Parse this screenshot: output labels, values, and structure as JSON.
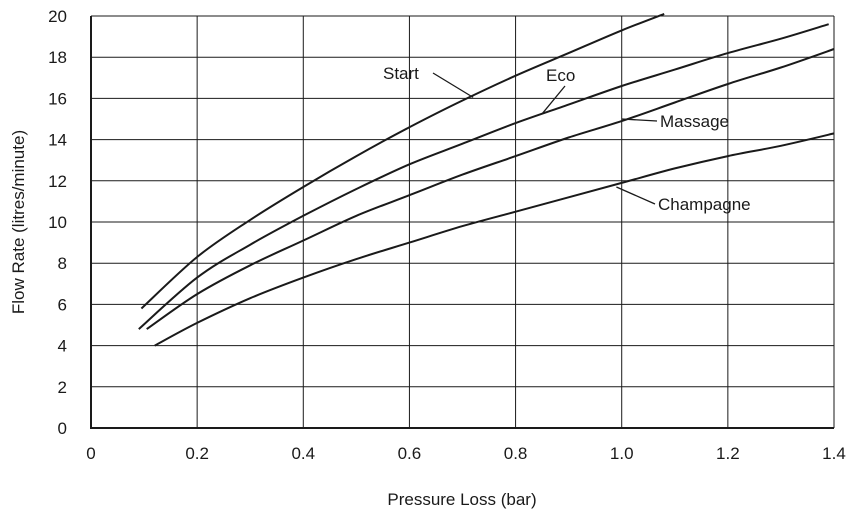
{
  "chart_data": {
    "type": "line",
    "xlabel": "Pressure Loss (bar)",
    "ylabel": "Flow Rate (litres/minute)",
    "xlim": [
      0,
      1.4
    ],
    "ylim": [
      0,
      20
    ],
    "x_ticks": [
      "0",
      "0.2",
      "0.4",
      "0.6",
      "0.8",
      "1.0",
      "1.2",
      "1.4"
    ],
    "y_ticks": [
      "0",
      "2",
      "4",
      "6",
      "8",
      "10",
      "12",
      "14",
      "16",
      "18",
      "20"
    ],
    "grid": true,
    "line_color": "#1a1a1a",
    "series": [
      {
        "name": "Start",
        "points": [
          [
            0.095,
            5.8
          ],
          [
            0.2,
            8.3
          ],
          [
            0.3,
            10.1
          ],
          [
            0.4,
            11.7
          ],
          [
            0.5,
            13.2
          ],
          [
            0.6,
            14.6
          ],
          [
            0.7,
            15.9
          ],
          [
            0.8,
            17.1
          ],
          [
            0.9,
            18.2
          ],
          [
            1.0,
            19.3
          ],
          [
            1.08,
            20.1
          ]
        ]
      },
      {
        "name": "Eco",
        "points": [
          [
            0.09,
            4.8
          ],
          [
            0.2,
            7.3
          ],
          [
            0.3,
            8.9
          ],
          [
            0.4,
            10.3
          ],
          [
            0.5,
            11.6
          ],
          [
            0.6,
            12.8
          ],
          [
            0.7,
            13.8
          ],
          [
            0.8,
            14.8
          ],
          [
            0.9,
            15.7
          ],
          [
            1.0,
            16.6
          ],
          [
            1.1,
            17.4
          ],
          [
            1.2,
            18.2
          ],
          [
            1.3,
            18.9
          ],
          [
            1.39,
            19.6
          ]
        ]
      },
      {
        "name": "Massage",
        "points": [
          [
            0.105,
            4.8
          ],
          [
            0.2,
            6.5
          ],
          [
            0.3,
            7.9
          ],
          [
            0.4,
            9.1
          ],
          [
            0.5,
            10.3
          ],
          [
            0.6,
            11.3
          ],
          [
            0.7,
            12.3
          ],
          [
            0.8,
            13.2
          ],
          [
            0.9,
            14.1
          ],
          [
            1.0,
            14.9
          ],
          [
            1.1,
            15.8
          ],
          [
            1.2,
            16.7
          ],
          [
            1.3,
            17.5
          ],
          [
            1.4,
            18.4
          ]
        ]
      },
      {
        "name": "Champagne",
        "points": [
          [
            0.12,
            4.0
          ],
          [
            0.2,
            5.1
          ],
          [
            0.3,
            6.3
          ],
          [
            0.4,
            7.3
          ],
          [
            0.5,
            8.2
          ],
          [
            0.6,
            9.0
          ],
          [
            0.7,
            9.8
          ],
          [
            0.8,
            10.5
          ],
          [
            0.9,
            11.2
          ],
          [
            1.0,
            11.9
          ],
          [
            1.1,
            12.6
          ],
          [
            1.2,
            13.2
          ],
          [
            1.3,
            13.7
          ],
          [
            1.4,
            14.3
          ]
        ]
      }
    ],
    "annotations": [
      {
        "text": "Start",
        "series": "Start",
        "anchor_x": 0.72,
        "anchor_y": 16.05,
        "text_at": [
          0.0,
          17.0
        ]
      },
      {
        "text": "Eco",
        "series": "Eco",
        "anchor_x": 0.85,
        "anchor_y": 15.25,
        "text_at": [
          0.0,
          0.0
        ]
      },
      {
        "text": "Massage",
        "series": "Massage",
        "anchor_x": 1.0,
        "anchor_y": 15.0,
        "text_at": [
          0.0,
          0.0
        ]
      },
      {
        "text": "Champagne",
        "series": "Champagne",
        "anchor_x": 0.99,
        "anchor_y": 11.7,
        "text_at": [
          0.0,
          0.0
        ]
      }
    ]
  }
}
